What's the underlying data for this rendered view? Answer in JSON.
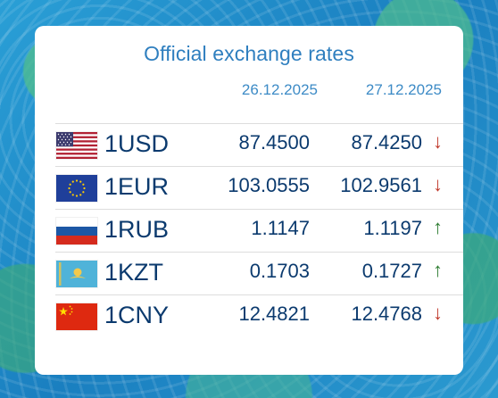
{
  "title": "Official exchange rates",
  "dates": [
    "26.12.2025",
    "27.12.2025"
  ],
  "colors": {
    "up": "#2e7d32",
    "down": "#c0392b",
    "title": "#2f7fbf",
    "text": "#0b3a6e"
  },
  "rates": [
    {
      "code": "1USD",
      "flag": "us-flag-icon",
      "rate1": "87.4500",
      "rate2": "87.4250",
      "trend": "down",
      "arrow": "↓"
    },
    {
      "code": "1EUR",
      "flag": "eu-flag-icon",
      "rate1": "103.0555",
      "rate2": "102.9561",
      "trend": "down",
      "arrow": "↓"
    },
    {
      "code": "1RUB",
      "flag": "ru-flag-icon",
      "rate1": "1.1147",
      "rate2": "1.1197",
      "trend": "up",
      "arrow": "↑"
    },
    {
      "code": "1KZT",
      "flag": "kz-flag-icon",
      "rate1": "0.1703",
      "rate2": "0.1727",
      "trend": "up",
      "arrow": "↑"
    },
    {
      "code": "1CNY",
      "flag": "cn-flag-icon",
      "rate1": "12.4821",
      "rate2": "12.4768",
      "trend": "down",
      "arrow": "↓"
    }
  ]
}
